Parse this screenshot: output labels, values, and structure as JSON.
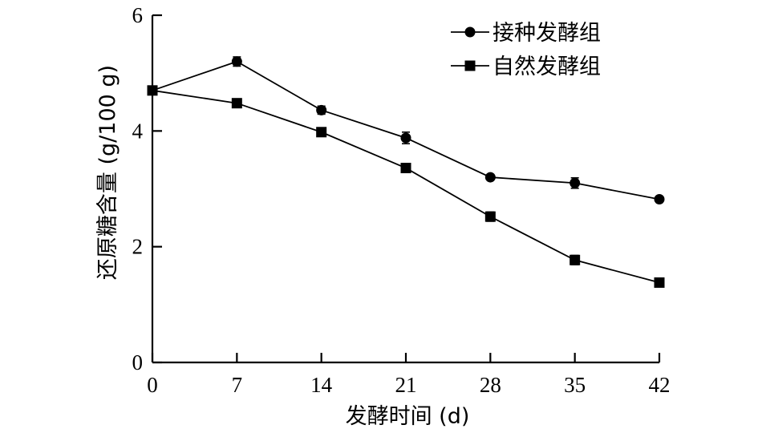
{
  "chart_data": {
    "type": "line",
    "xlabel": "发酵时间 (d)",
    "ylabel": "还原糖含量 (g/100 g)",
    "x": [
      0,
      7,
      14,
      21,
      28,
      35,
      42
    ],
    "xticks": [
      "0",
      "7",
      "14",
      "21",
      "28",
      "35",
      "42"
    ],
    "xlim": [
      0,
      42
    ],
    "ylim": [
      0,
      6
    ],
    "yticks": [
      "0",
      "2",
      "4",
      "6"
    ],
    "grid": false,
    "legend_position": "top-right",
    "series": [
      {
        "name": "接种发酵组",
        "marker": "circle",
        "values": [
          4.7,
          5.2,
          4.36,
          3.88,
          3.2,
          3.1,
          2.82
        ],
        "errors": [
          0.05,
          0.08,
          0.07,
          0.1,
          0.04,
          0.09,
          0.04
        ]
      },
      {
        "name": "自然发酵组",
        "marker": "square",
        "values": [
          4.7,
          4.48,
          3.98,
          3.36,
          2.52,
          1.77,
          1.38
        ],
        "errors": [
          0.05,
          0.05,
          0.05,
          0.04,
          0.08,
          0.08,
          0.07
        ]
      }
    ]
  }
}
